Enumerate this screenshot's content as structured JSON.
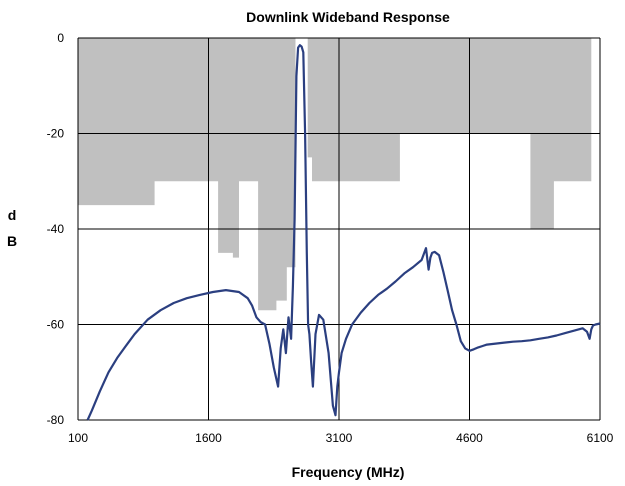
{
  "chart_data": {
    "type": "line",
    "title": "Downlink Wideband Response",
    "xlabel": "Frequency (MHz)",
    "ylabel_lines": [
      "d",
      "B"
    ],
    "xlim": [
      100,
      6100
    ],
    "ylim": [
      -80,
      0
    ],
    "x_ticks": [
      100,
      1600,
      3100,
      4600,
      6100
    ],
    "y_ticks": [
      0,
      -20,
      -40,
      -60,
      -80
    ],
    "grid": true,
    "colors": {
      "line": "#2b3f80",
      "mask": "#c0c0c0",
      "grid": "#000000"
    },
    "mask": [
      {
        "x": 100,
        "y": -35
      },
      {
        "x": 980,
        "y": -35
      },
      {
        "x": 980,
        "y": -30
      },
      {
        "x": 1710,
        "y": -30
      },
      {
        "x": 1710,
        "y": -45
      },
      {
        "x": 1880,
        "y": -45
      },
      {
        "x": 1880,
        "y": -46
      },
      {
        "x": 1950,
        "y": -46
      },
      {
        "x": 1950,
        "y": -30
      },
      {
        "x": 2170,
        "y": -30
      },
      {
        "x": 2170,
        "y": -57
      },
      {
        "x": 2380,
        "y": -57
      },
      {
        "x": 2380,
        "y": -55
      },
      {
        "x": 2500,
        "y": -55
      },
      {
        "x": 2500,
        "y": -48
      },
      {
        "x": 2600,
        "y": -48
      },
      {
        "x": 2600,
        "y": 0
      },
      {
        "x": 2740,
        "y": 0
      },
      {
        "x": 2740,
        "y": -25
      },
      {
        "x": 2790,
        "y": -25
      },
      {
        "x": 2790,
        "y": -30
      },
      {
        "x": 3800,
        "y": -30
      },
      {
        "x": 3800,
        "y": -20
      },
      {
        "x": 5300,
        "y": -20
      },
      {
        "x": 5300,
        "y": -40
      },
      {
        "x": 5570,
        "y": -40
      },
      {
        "x": 5570,
        "y": -30
      },
      {
        "x": 6000,
        "y": -30
      },
      {
        "x": 6000,
        "y": 0
      }
    ],
    "series": [
      {
        "x": [
          210,
          260,
          350,
          450,
          550,
          650,
          750,
          900,
          1050,
          1200,
          1350,
          1500,
          1650,
          1800,
          1950,
          2050,
          2100,
          2150,
          2200,
          2250,
          2300,
          2350,
          2400,
          2430,
          2460,
          2490,
          2520,
          2550,
          2570,
          2590,
          2610,
          2630,
          2650,
          2670,
          2690,
          2710,
          2730,
          2745,
          2760,
          2780,
          2800,
          2830,
          2870,
          2920,
          2980,
          3030,
          3060,
          3080,
          3100,
          3130,
          3180,
          3250,
          3350,
          3450,
          3550,
          3650,
          3750,
          3850,
          3950,
          4050,
          4100,
          4130,
          4150,
          4170,
          4200,
          4250,
          4300,
          4350,
          4400,
          4450,
          4500,
          4550,
          4600,
          4650,
          4700,
          4750,
          4800,
          4900,
          5000,
          5100,
          5200,
          5300,
          5400,
          5500,
          5600,
          5700,
          5800,
          5900,
          5950,
          5980,
          6000,
          6020,
          6050,
          6100
        ],
        "y": [
          -80,
          -78,
          -74,
          -70,
          -67,
          -64.5,
          -62,
          -59,
          -57,
          -55.5,
          -54.5,
          -53.8,
          -53.2,
          -52.8,
          -53.2,
          -54.5,
          -56,
          -58.5,
          -59.5,
          -60,
          -64,
          -69,
          -73,
          -65,
          -61,
          -66,
          -58.5,
          -63,
          -52,
          -38,
          -8,
          -2,
          -1.5,
          -1.8,
          -3,
          -20,
          -45,
          -60,
          -62,
          -68,
          -73,
          -62,
          -58,
          -59,
          -66,
          -77,
          -79,
          -73,
          -70,
          -66,
          -63,
          -60,
          -57.5,
          -55.5,
          -53.8,
          -52.5,
          -51,
          -49.3,
          -48,
          -46.5,
          -44,
          -48.5,
          -46,
          -45,
          -44.8,
          -45.5,
          -49,
          -53,
          -57,
          -60,
          -63.5,
          -65,
          -65.5,
          -65.2,
          -64.8,
          -64.5,
          -64.2,
          -64,
          -63.8,
          -63.6,
          -63.5,
          -63.3,
          -63,
          -62.7,
          -62.3,
          -61.8,
          -61.3,
          -60.8,
          -61.5,
          -63,
          -61,
          -60.2,
          -60,
          -59.8
        ]
      }
    ]
  }
}
